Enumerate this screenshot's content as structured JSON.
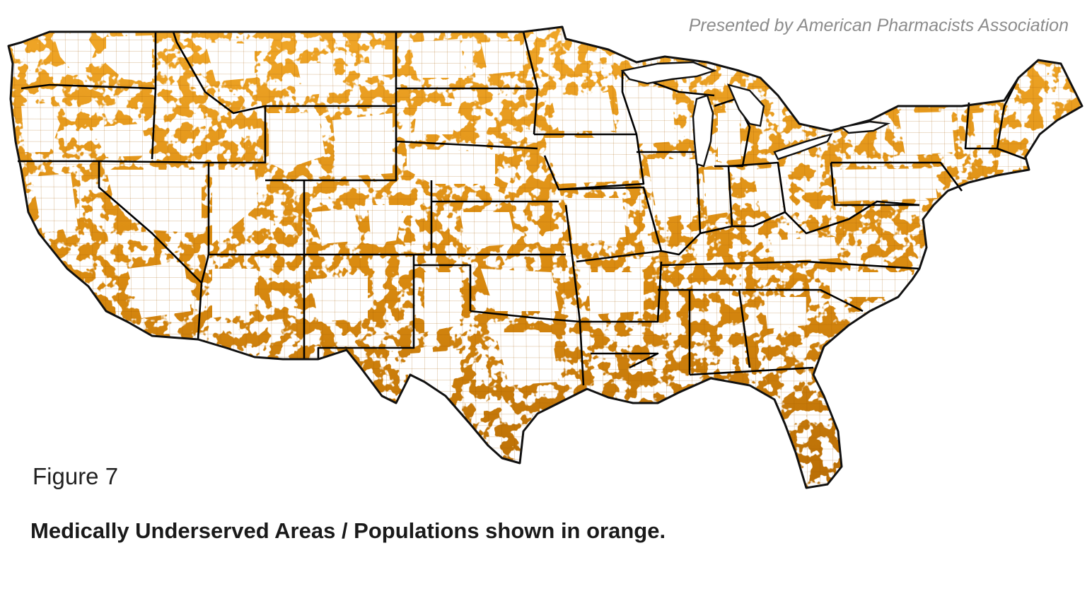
{
  "credit_text": "Presented by American Pharmacists Association",
  "figure_label": "Figure 7",
  "caption": "Medically Underserved Areas / Populations shown in orange.",
  "map": {
    "region": "contiguous United States",
    "highlight_color": "#d98a10",
    "highlight_color_light": "#f2a92a",
    "highlight_color_dark": "#b86d05",
    "background_color": "#ffffff",
    "border_color": "#000000"
  }
}
